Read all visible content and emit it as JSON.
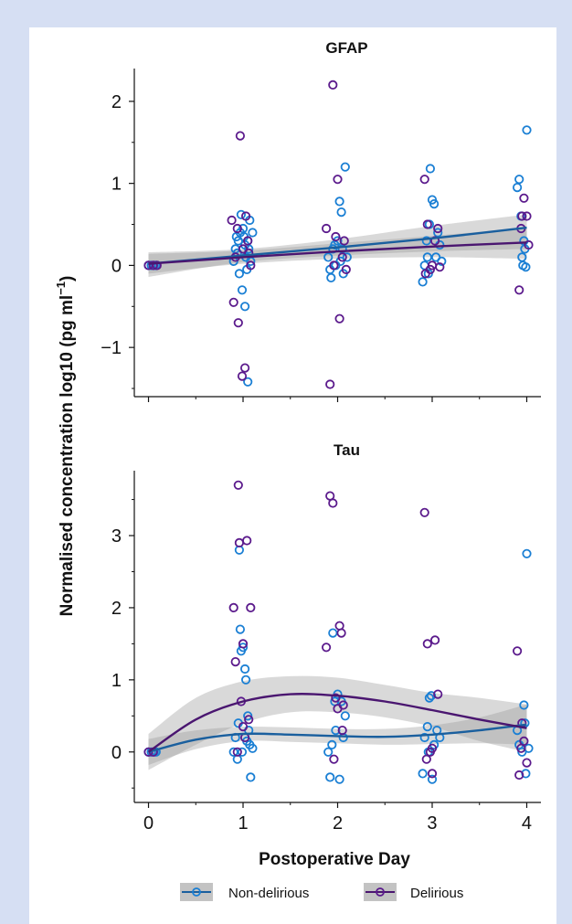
{
  "figure": {
    "ylabel": "Normalised concentration log10 (pg ml",
    "ylabel_sup": "−1",
    "ylabel_close": ")",
    "xlabel": "Postoperative Day"
  },
  "legend": [
    {
      "name": "Non-delirious",
      "color": "#1a7fd4",
      "line": "#1a5f9e"
    },
    {
      "name": "Delirious",
      "color": "#5b1a8c",
      "line": "#4a1670"
    }
  ],
  "chart_data": [
    {
      "type": "scatter",
      "title": "GFAP",
      "x_ticks": [
        0,
        1,
        2,
        3,
        4
      ],
      "xlim": [
        -0.15,
        4.15
      ],
      "y_ticks": [
        -1,
        0,
        1,
        2
      ],
      "y_tick_labels": [
        "−1",
        "0",
        "1",
        "2"
      ],
      "ylim": [
        -1.6,
        2.4
      ],
      "series": [
        {
          "name": "Non-delirious",
          "points": [
            [
              0.0,
              0
            ],
            [
              0.03,
              0
            ],
            [
              0.06,
              0
            ],
            [
              0.08,
              0
            ],
            [
              0.9,
              0.05
            ],
            [
              0.92,
              0.2
            ],
            [
              0.94,
              0.15
            ],
            [
              0.95,
              0.3
            ],
            [
              0.97,
              0.4
            ],
            [
              0.98,
              0.62
            ],
            [
              1.0,
              0.45
            ],
            [
              1.01,
              0.35
            ],
            [
              1.02,
              0.25
            ],
            [
              1.03,
              0.1
            ],
            [
              1.04,
              -0.05
            ],
            [
              1.05,
              0.3
            ],
            [
              1.06,
              0.2
            ],
            [
              1.07,
              0.55
            ],
            [
              1.08,
              0.05
            ],
            [
              0.96,
              -0.1
            ],
            [
              0.99,
              -0.3
            ],
            [
              1.02,
              -0.5
            ],
            [
              1.05,
              -1.42
            ],
            [
              1.1,
              0.4
            ],
            [
              0.93,
              0.35
            ],
            [
              1.9,
              0.1
            ],
            [
              1.92,
              -0.05
            ],
            [
              1.95,
              0.2
            ],
            [
              1.97,
              0.25
            ],
            [
              1.98,
              0.0
            ],
            [
              2.0,
              0.3
            ],
            [
              2.02,
              0.78
            ],
            [
              2.04,
              0.65
            ],
            [
              2.05,
              0.2
            ],
            [
              2.06,
              -0.1
            ],
            [
              2.08,
              1.2
            ],
            [
              2.1,
              0.1
            ],
            [
              1.93,
              -0.15
            ],
            [
              2.03,
              0.05
            ],
            [
              2.9,
              -0.2
            ],
            [
              2.92,
              0.0
            ],
            [
              2.94,
              0.3
            ],
            [
              2.95,
              0.1
            ],
            [
              2.97,
              0.5
            ],
            [
              2.98,
              1.18
            ],
            [
              3.0,
              0.8
            ],
            [
              3.02,
              0.75
            ],
            [
              3.04,
              0.1
            ],
            [
              3.06,
              0.4
            ],
            [
              3.08,
              0.25
            ],
            [
              3.1,
              0.05
            ],
            [
              2.96,
              -0.1
            ],
            [
              3.9,
              0.95
            ],
            [
              3.92,
              1.05
            ],
            [
              3.94,
              0.6
            ],
            [
              3.95,
              0.1
            ],
            [
              3.97,
              0.3
            ],
            [
              3.98,
              0.2
            ],
            [
              4.0,
              1.65
            ],
            [
              3.96,
              0.0
            ],
            [
              3.99,
              -0.02
            ]
          ]
        },
        {
          "name": "Delirious",
          "points": [
            [
              0.0,
              0
            ],
            [
              0.05,
              0
            ],
            [
              0.09,
              0
            ],
            [
              0.88,
              0.55
            ],
            [
              0.9,
              -0.45
            ],
            [
              0.92,
              0.1
            ],
            [
              0.95,
              -0.7
            ],
            [
              0.97,
              1.58
            ],
            [
              0.99,
              -1.35
            ],
            [
              1.02,
              -1.25
            ],
            [
              1.03,
              0.6
            ],
            [
              1.05,
              0.3
            ],
            [
              1.06,
              0.15
            ],
            [
              1.08,
              0.0
            ],
            [
              0.94,
              0.45
            ],
            [
              1.0,
              0.2
            ],
            [
              1.88,
              0.45
            ],
            [
              1.92,
              -1.45
            ],
            [
              1.95,
              2.2
            ],
            [
              1.98,
              0.35
            ],
            [
              2.0,
              1.05
            ],
            [
              2.02,
              -0.65
            ],
            [
              2.05,
              0.1
            ],
            [
              2.07,
              0.3
            ],
            [
              2.09,
              -0.05
            ],
            [
              1.96,
              0.0
            ],
            [
              2.92,
              1.05
            ],
            [
              2.95,
              0.5
            ],
            [
              2.98,
              -0.05
            ],
            [
              3.0,
              0.0
            ],
            [
              3.03,
              0.3
            ],
            [
              3.06,
              0.45
            ],
            [
              3.08,
              -0.02
            ],
            [
              2.93,
              -0.1
            ],
            [
              3.92,
              -0.3
            ],
            [
              3.95,
              0.6
            ],
            [
              3.97,
              0.82
            ],
            [
              4.0,
              0.6
            ],
            [
              4.02,
              0.25
            ],
            [
              3.94,
              0.45
            ]
          ]
        }
      ],
      "fits": [
        {
          "name": "Non-delirious",
          "x": [
            0,
            1,
            2,
            3,
            4
          ],
          "y": [
            0.02,
            0.12,
            0.22,
            0.33,
            0.46
          ],
          "ci_lo": [
            -0.14,
            0.04,
            0.12,
            0.17,
            0.2
          ],
          "ci_hi": [
            0.16,
            0.2,
            0.32,
            0.48,
            0.62
          ]
        },
        {
          "name": "Delirious",
          "x": [
            0,
            1,
            2,
            3,
            4
          ],
          "y": [
            0.02,
            0.1,
            0.17,
            0.23,
            0.28
          ],
          "ci_lo": [
            -0.1,
            0.02,
            0.08,
            0.1,
            0.08
          ],
          "ci_hi": [
            0.14,
            0.18,
            0.27,
            0.36,
            0.46
          ]
        }
      ]
    },
    {
      "type": "scatter",
      "title": "Tau",
      "x_ticks": [
        0,
        1,
        2,
        3,
        4
      ],
      "x_tick_labels": [
        "0",
        "1",
        "2",
        "3",
        "4"
      ],
      "xlim": [
        -0.15,
        4.15
      ],
      "y_ticks": [
        0,
        1,
        2,
        3
      ],
      "y_tick_labels": [
        "0",
        "1",
        "2",
        "3"
      ],
      "ylim": [
        -0.7,
        3.9
      ],
      "series": [
        {
          "name": "Non-delirious",
          "points": [
            [
              0.0,
              0
            ],
            [
              0.03,
              0
            ],
            [
              0.06,
              0
            ],
            [
              0.08,
              0
            ],
            [
              0.9,
              0.0
            ],
            [
              0.92,
              0.2
            ],
            [
              0.94,
              -0.1
            ],
            [
              0.96,
              2.8
            ],
            [
              0.97,
              1.7
            ],
            [
              0.98,
              1.4
            ],
            [
              1.0,
              1.45
            ],
            [
              1.02,
              1.15
            ],
            [
              1.03,
              1.0
            ],
            [
              1.05,
              0.5
            ],
            [
              1.06,
              0.3
            ],
            [
              1.07,
              0.1
            ],
            [
              1.08,
              -0.35
            ],
            [
              1.1,
              0.05
            ],
            [
              0.95,
              0.4
            ],
            [
              0.99,
              0.0
            ],
            [
              1.04,
              0.15
            ],
            [
              1.9,
              0.0
            ],
            [
              1.92,
              -0.35
            ],
            [
              1.95,
              1.65
            ],
            [
              1.97,
              0.7
            ],
            [
              1.98,
              0.3
            ],
            [
              2.0,
              0.8
            ],
            [
              2.02,
              -0.38
            ],
            [
              2.04,
              0.7
            ],
            [
              2.06,
              0.2
            ],
            [
              2.08,
              0.5
            ],
            [
              1.94,
              0.1
            ],
            [
              2.9,
              -0.3
            ],
            [
              2.92,
              0.2
            ],
            [
              2.95,
              0.35
            ],
            [
              2.97,
              0.75
            ],
            [
              2.99,
              0.78
            ],
            [
              3.0,
              -0.38
            ],
            [
              3.02,
              0.1
            ],
            [
              3.05,
              0.3
            ],
            [
              3.08,
              0.2
            ],
            [
              2.96,
              0.0
            ],
            [
              3.9,
              0.3
            ],
            [
              3.92,
              0.1
            ],
            [
              3.95,
              0.0
            ],
            [
              3.97,
              0.65
            ],
            [
              3.98,
              0.4
            ],
            [
              4.0,
              2.75
            ],
            [
              3.99,
              -0.3
            ],
            [
              4.02,
              0.05
            ]
          ]
        },
        {
          "name": "Delirious",
          "points": [
            [
              0.0,
              0
            ],
            [
              0.05,
              0
            ],
            [
              0.9,
              2.0
            ],
            [
              0.92,
              1.25
            ],
            [
              0.95,
              3.7
            ],
            [
              0.96,
              2.9
            ],
            [
              0.98,
              0.7
            ],
            [
              1.0,
              1.5
            ],
            [
              1.02,
              0.2
            ],
            [
              1.04,
              2.93
            ],
            [
              1.06,
              0.45
            ],
            [
              1.08,
              2.0
            ],
            [
              0.94,
              0.0
            ],
            [
              1.0,
              0.35
            ],
            [
              1.88,
              1.45
            ],
            [
              1.92,
              3.55
            ],
            [
              1.95,
              3.45
            ],
            [
              1.98,
              0.75
            ],
            [
              2.0,
              0.6
            ],
            [
              2.02,
              1.75
            ],
            [
              2.04,
              1.65
            ],
            [
              2.06,
              0.65
            ],
            [
              1.96,
              -0.1
            ],
            [
              2.05,
              0.3
            ],
            [
              2.92,
              3.32
            ],
            [
              2.95,
              1.5
            ],
            [
              2.98,
              0.0
            ],
            [
              3.0,
              -0.3
            ],
            [
              3.03,
              1.55
            ],
            [
              3.06,
              0.8
            ],
            [
              2.94,
              -0.1
            ],
            [
              3.0,
              0.05
            ],
            [
              3.9,
              1.4
            ],
            [
              3.92,
              -0.32
            ],
            [
              3.95,
              0.4
            ],
            [
              3.97,
              0.15
            ],
            [
              4.0,
              -0.15
            ],
            [
              3.94,
              0.05
            ]
          ]
        }
      ],
      "fits": [
        {
          "name": "Non-delirious",
          "x": [
            0,
            0.5,
            1,
            1.5,
            2,
            2.5,
            3,
            3.5,
            4
          ],
          "y": [
            0.0,
            0.17,
            0.25,
            0.24,
            0.22,
            0.21,
            0.24,
            0.3,
            0.38
          ],
          "ci_lo": [
            -0.18,
            0.04,
            0.15,
            0.14,
            0.12,
            0.1,
            0.11,
            0.12,
            0.1
          ],
          "ci_hi": [
            0.18,
            0.3,
            0.35,
            0.34,
            0.32,
            0.32,
            0.37,
            0.48,
            0.66
          ]
        },
        {
          "name": "Delirious",
          "x": [
            0,
            0.5,
            1,
            1.5,
            2,
            2.5,
            3,
            3.5,
            4
          ],
          "y": [
            0.0,
            0.45,
            0.7,
            0.8,
            0.78,
            0.7,
            0.58,
            0.45,
            0.33
          ],
          "ci_lo": [
            -0.25,
            0.1,
            0.4,
            0.55,
            0.55,
            0.48,
            0.35,
            0.15,
            0.0
          ],
          "ci_hi": [
            0.25,
            0.75,
            0.98,
            1.05,
            1.03,
            0.93,
            0.82,
            0.75,
            0.66
          ]
        }
      ]
    }
  ]
}
